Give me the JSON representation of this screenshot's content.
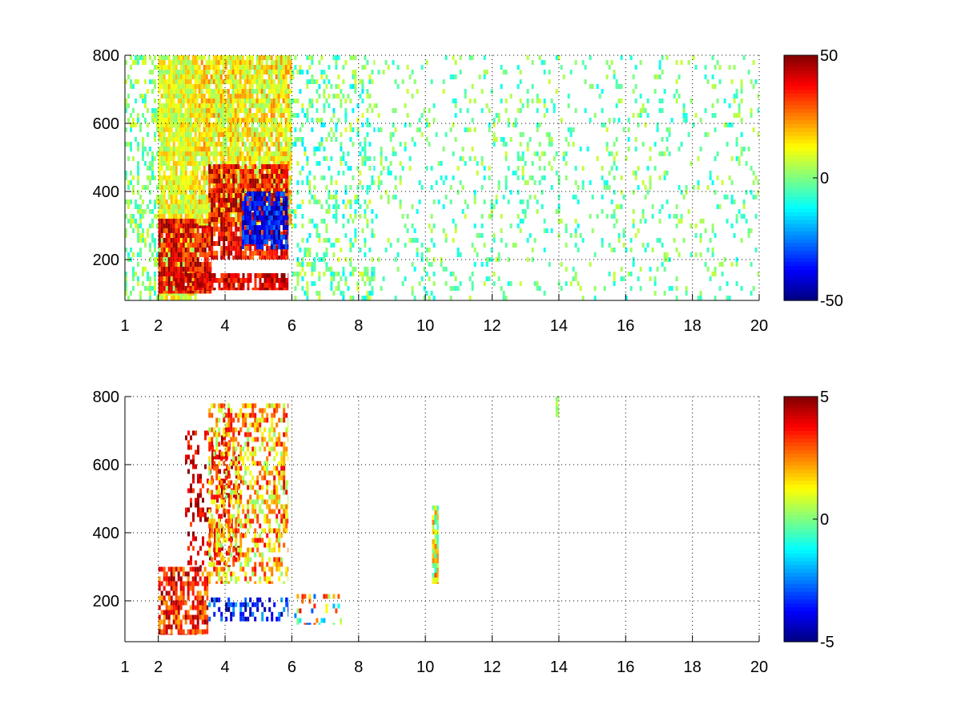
{
  "figure": {
    "panels": [
      {
        "id": "top",
        "x_ticks": [
          "1",
          "2",
          "4",
          "6",
          "8",
          "10",
          "12",
          "14",
          "16",
          "18",
          "20"
        ],
        "y_ticks": [
          "200",
          "400",
          "600",
          "800"
        ],
        "colorbar_ticks": [
          "50",
          "0",
          "-50"
        ]
      },
      {
        "id": "bottom",
        "x_ticks": [
          "1",
          "2",
          "4",
          "6",
          "8",
          "10",
          "12",
          "14",
          "16",
          "18",
          "20"
        ],
        "y_ticks": [
          "200",
          "400",
          "600",
          "800"
        ],
        "colorbar_ticks": [
          "5",
          "0",
          "-5"
        ]
      }
    ]
  },
  "chart_data": [
    {
      "type": "heatmap",
      "colormap": "jet",
      "grid": true,
      "grid_style": "dotted",
      "xlim": [
        1,
        20
      ],
      "ylim": [
        80,
        800
      ],
      "x_ticks": [
        1,
        2,
        4,
        6,
        8,
        10,
        12,
        14,
        16,
        18,
        20
      ],
      "y_ticks": [
        200,
        400,
        600,
        800
      ],
      "clim": [
        -50,
        50
      ],
      "colorbar_ticks": [
        50,
        0,
        -50
      ],
      "regions": [
        {
          "x": [
            1.0,
            2.0
          ],
          "y": [
            80,
            800
          ],
          "value_range": [
            -10,
            10
          ],
          "coverage": 0.35
        },
        {
          "x": [
            2.0,
            3.2
          ],
          "y": [
            80,
            800
          ],
          "value_range": [
            0,
            20
          ],
          "coverage": 0.9
        },
        {
          "x": [
            2.0,
            3.6
          ],
          "y": [
            100,
            320
          ],
          "value_range": [
            25,
            50
          ],
          "coverage": 0.9
        },
        {
          "x": [
            3.2,
            6.0
          ],
          "y": [
            300,
            800
          ],
          "value_range": [
            0,
            25
          ],
          "coverage": 0.9
        },
        {
          "x": [
            3.5,
            5.9
          ],
          "y": [
            200,
            480
          ],
          "value_range": [
            25,
            50
          ],
          "coverage": 0.8
        },
        {
          "x": [
            4.5,
            5.9
          ],
          "y": [
            230,
            400
          ],
          "value_range": [
            -50,
            -25
          ],
          "coverage": 0.8
        },
        {
          "x": [
            2.5,
            5.9
          ],
          "y": [
            110,
            160
          ],
          "value_range": [
            30,
            50
          ],
          "coverage": 0.8
        },
        {
          "x": [
            6.0,
            8.5
          ],
          "y": [
            80,
            800
          ],
          "value_range": [
            -15,
            10
          ],
          "coverage": 0.25
        },
        {
          "x": [
            8.5,
            20.0
          ],
          "y": [
            80,
            800
          ],
          "value_range": [
            -12,
            8
          ],
          "coverage": 0.12
        }
      ]
    },
    {
      "type": "heatmap",
      "colormap": "jet",
      "grid": true,
      "grid_style": "dotted",
      "xlim": [
        1,
        20
      ],
      "ylim": [
        80,
        800
      ],
      "x_ticks": [
        1,
        2,
        4,
        6,
        8,
        10,
        12,
        14,
        16,
        18,
        20
      ],
      "y_ticks": [
        200,
        400,
        600,
        800
      ],
      "clim": [
        -5,
        5
      ],
      "colorbar_ticks": [
        5,
        0,
        -5
      ],
      "regions": [
        {
          "x": [
            2.0,
            3.5
          ],
          "y": [
            100,
            300
          ],
          "value_range": [
            2,
            5
          ],
          "coverage": 0.7
        },
        {
          "x": [
            2.8,
            4.5
          ],
          "y": [
            300,
            700
          ],
          "value_range": [
            3,
            5
          ],
          "coverage": 0.3
        },
        {
          "x": [
            3.5,
            5.9
          ],
          "y": [
            250,
            780
          ],
          "value_range": [
            0,
            4
          ],
          "coverage": 0.5
        },
        {
          "x": [
            3.5,
            5.9
          ],
          "y": [
            140,
            210
          ],
          "value_range": [
            -5,
            -2
          ],
          "coverage": 0.4
        },
        {
          "x": [
            6.0,
            7.5
          ],
          "y": [
            130,
            220
          ],
          "value_range": [
            -3,
            4
          ],
          "coverage": 0.3
        },
        {
          "x": [
            10.2,
            10.4
          ],
          "y": [
            250,
            480
          ],
          "value_range": [
            -1,
            3
          ],
          "coverage": 0.9
        },
        {
          "x": [
            13.9,
            14.0
          ],
          "y": [
            740,
            800
          ],
          "value_range": [
            0,
            1
          ],
          "coverage": 0.9
        }
      ]
    }
  ]
}
